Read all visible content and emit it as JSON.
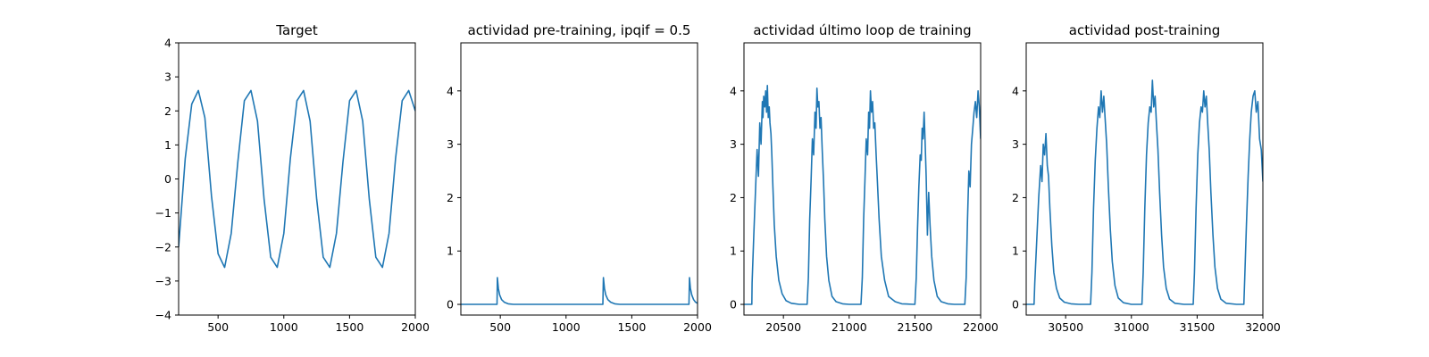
{
  "chart_data": [
    {
      "type": "line",
      "title": "Target",
      "xlabel": "",
      "ylabel": "",
      "xlim": [
        200,
        2000
      ],
      "ylim": [
        -4,
        4
      ],
      "xticks": [
        500,
        1000,
        1500,
        2000
      ],
      "yticks": [
        -4,
        -3,
        -2,
        -1,
        0,
        1,
        2,
        3,
        4
      ],
      "grid": false,
      "series": [
        {
          "color": "#1f77b4",
          "x": [
            200,
            250,
            300,
            350,
            400,
            450,
            500,
            550,
            600,
            650,
            700,
            750,
            800,
            850,
            900,
            950,
            1000,
            1050,
            1100,
            1150,
            1200,
            1250,
            1300,
            1350,
            1400,
            1450,
            1500,
            1550,
            1600,
            1650,
            1700,
            1750,
            1800,
            1850,
            1900,
            1950,
            2000
          ],
          "y": [
            -2.0,
            0.6,
            2.2,
            2.6,
            1.8,
            -0.5,
            -2.2,
            -2.6,
            -1.6,
            0.5,
            2.3,
            2.6,
            1.7,
            -0.6,
            -2.3,
            -2.6,
            -1.6,
            0.6,
            2.3,
            2.6,
            1.7,
            -0.6,
            -2.3,
            -2.6,
            -1.6,
            0.5,
            2.3,
            2.6,
            1.7,
            -0.6,
            -2.3,
            -2.6,
            -1.6,
            0.6,
            2.3,
            2.6,
            2.0
          ]
        }
      ]
    },
    {
      "type": "line",
      "title": "actividad pre-training, ipqif = 0.5",
      "xlabel": "",
      "ylabel": "",
      "xlim": [
        200,
        2000
      ],
      "ylim": [
        -0.2,
        4.9
      ],
      "xticks": [
        500,
        1000,
        1500,
        2000
      ],
      "yticks": [
        0,
        1,
        2,
        3,
        4
      ],
      "grid": false,
      "series": [
        {
          "color": "#1f77b4",
          "x": [
            200,
            475,
            478,
            485,
            495,
            510,
            530,
            560,
            600,
            1280,
            1284,
            1292,
            1302,
            1318,
            1340,
            1370,
            1410,
            1935,
            1939,
            1946,
            1956,
            1970,
            1985,
            2000
          ],
          "y": [
            0,
            0,
            0.5,
            0.3,
            0.18,
            0.09,
            0.04,
            0.01,
            0,
            0,
            0.5,
            0.3,
            0.18,
            0.09,
            0.04,
            0.01,
            0,
            0,
            0.5,
            0.3,
            0.18,
            0.09,
            0.04,
            0.02
          ]
        }
      ]
    },
    {
      "type": "line",
      "title": "actividad último loop de training",
      "xlabel": "",
      "ylabel": "",
      "xlim": [
        20200,
        22000
      ],
      "ylim": [
        -0.2,
        4.9
      ],
      "xticks": [
        20500,
        21000,
        21500,
        22000
      ],
      "yticks": [
        0,
        1,
        2,
        3,
        4
      ],
      "grid": false,
      "series": [
        {
          "color": "#1f77b4",
          "x": [
            20200,
            20260,
            20262,
            20275,
            20290,
            20300,
            20310,
            20320,
            20330,
            20340,
            20345,
            20350,
            20358,
            20365,
            20372,
            20378,
            20385,
            20392,
            20398,
            20405,
            20412,
            20420,
            20430,
            20445,
            20465,
            20490,
            20520,
            20560,
            20620,
            20680,
            20690,
            20700,
            20710,
            20720,
            20730,
            20740,
            20748,
            20755,
            20762,
            20770,
            20778,
            20786,
            20795,
            20805,
            20815,
            20828,
            20845,
            20870,
            20900,
            20950,
            21000,
            21090,
            21100,
            21110,
            21120,
            21130,
            21140,
            21148,
            21155,
            21162,
            21170,
            21178,
            21186,
            21195,
            21205,
            21215,
            21228,
            21245,
            21270,
            21300,
            21350,
            21400,
            21490,
            21500,
            21510,
            21520,
            21530,
            21540,
            21548,
            21555,
            21562,
            21570,
            21578,
            21586,
            21595,
            21605,
            21615,
            21628,
            21645,
            21670,
            21700,
            21750,
            21800,
            21880,
            21890,
            21900,
            21910,
            21920,
            21930,
            21940,
            21950,
            21960,
            21970,
            21980,
            21990,
            22000
          ],
          "y": [
            0,
            0,
            0.4,
            1.3,
            2.3,
            2.9,
            2.4,
            3.4,
            3.0,
            3.8,
            3.5,
            3.9,
            3.7,
            4.0,
            3.6,
            4.1,
            3.5,
            3.7,
            3.4,
            3.2,
            2.8,
            2.2,
            1.5,
            0.9,
            0.45,
            0.2,
            0.07,
            0.02,
            0,
            0,
            0.5,
            1.6,
            2.3,
            3.1,
            2.8,
            3.6,
            3.3,
            4.05,
            3.7,
            3.8,
            3.3,
            3.5,
            2.9,
            2.3,
            1.6,
            0.9,
            0.45,
            0.15,
            0.05,
            0.01,
            0,
            0,
            0.5,
            1.6,
            2.3,
            3.1,
            2.8,
            3.6,
            3.3,
            4.0,
            3.6,
            3.8,
            3.3,
            3.4,
            2.8,
            2.3,
            1.6,
            0.9,
            0.45,
            0.15,
            0.05,
            0.01,
            0,
            0,
            0.5,
            1.4,
            2.2,
            2.8,
            2.7,
            3.3,
            3.1,
            3.6,
            3.0,
            2.4,
            1.3,
            2.1,
            1.5,
            0.9,
            0.45,
            0.15,
            0.05,
            0.01,
            0,
            0,
            0.5,
            1.6,
            2.5,
            2.2,
            3.0,
            3.3,
            3.6,
            3.8,
            3.5,
            4.0,
            3.7,
            3.1
          ]
        }
      ]
    },
    {
      "type": "line",
      "title": "actividad post-training",
      "xlabel": "",
      "ylabel": "",
      "xlim": [
        30200,
        32000
      ],
      "ylim": [
        -0.2,
        4.9
      ],
      "xticks": [
        30500,
        31000,
        31500,
        32000
      ],
      "yticks": [
        0,
        1,
        2,
        3,
        4
      ],
      "grid": false,
      "series": [
        {
          "color": "#1f77b4",
          "x": [
            30200,
            30260,
            30265,
            30280,
            30295,
            30310,
            30320,
            30330,
            30340,
            30350,
            30360,
            30370,
            30380,
            30395,
            30410,
            30430,
            30455,
            30490,
            30540,
            30600,
            30690,
            30700,
            30712,
            30725,
            30738,
            30750,
            30760,
            30770,
            30780,
            30790,
            30800,
            30812,
            30825,
            30840,
            30855,
            30875,
            30900,
            30940,
            31000,
            31080,
            31090,
            31102,
            31115,
            31128,
            31140,
            31150,
            31160,
            31170,
            31180,
            31190,
            31202,
            31215,
            31230,
            31245,
            31265,
            31290,
            31330,
            31400,
            31470,
            31480,
            31492,
            31505,
            31518,
            31530,
            31540,
            31550,
            31560,
            31570,
            31580,
            31592,
            31605,
            31620,
            31635,
            31655,
            31680,
            31720,
            31800,
            31855,
            31862,
            31875,
            31888,
            31900,
            31912,
            31925,
            31938,
            31950,
            31962,
            31975,
            31988,
            32000
          ],
          "y": [
            0,
            0,
            0.4,
            1.2,
            2.0,
            2.6,
            2.3,
            3.0,
            2.8,
            3.2,
            2.6,
            2.4,
            1.8,
            1.1,
            0.6,
            0.3,
            0.12,
            0.04,
            0.01,
            0,
            0,
            0.6,
            1.8,
            2.7,
            3.3,
            3.7,
            3.5,
            4.0,
            3.6,
            3.9,
            3.5,
            3.0,
            2.2,
            1.4,
            0.8,
            0.35,
            0.12,
            0.03,
            0,
            0,
            0.6,
            1.8,
            2.8,
            3.4,
            3.7,
            3.6,
            4.2,
            3.7,
            3.9,
            3.4,
            2.9,
            2.1,
            1.3,
            0.7,
            0.3,
            0.1,
            0.02,
            0,
            0,
            0.6,
            1.8,
            2.8,
            3.4,
            3.7,
            3.6,
            4.0,
            3.7,
            3.9,
            3.4,
            2.9,
            2.1,
            1.3,
            0.7,
            0.3,
            0.1,
            0.02,
            0,
            0,
            0.5,
            1.5,
            2.4,
            3.1,
            3.6,
            3.9,
            4.0,
            3.6,
            3.8,
            3.1,
            2.9,
            2.3
          ]
        }
      ]
    }
  ]
}
